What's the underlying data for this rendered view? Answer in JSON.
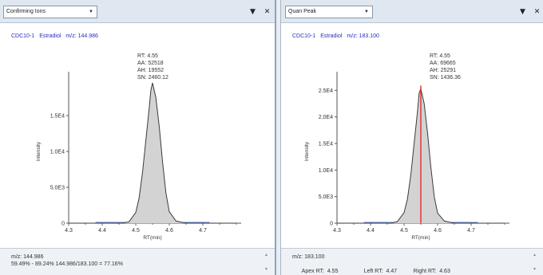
{
  "panels": [
    {
      "dropdown": "Confirming Ions",
      "compound_id": "CDC10-1",
      "compound_name": "Estradiol",
      "mz_label": "m/z: 144.986",
      "annotation": [
        "RT: 4.55",
        "AA: 52518",
        "AH: 19552",
        "SN: 2460.12"
      ],
      "info_line1": "m/z: 144.986",
      "info_line2": "59.49% - 89.24% 144.986/183.100 = 77.16%"
    },
    {
      "dropdown": "Quan Peak",
      "compound_id": "CDC10-1",
      "compound_name": "Estradiol",
      "mz_label": "m/z: 183.100",
      "annotation": [
        "RT: 4.55",
        "AA: 69665",
        "AH: 25291",
        "SN: 1436.36"
      ],
      "info_line1": "m/z: 183.100",
      "info_apex": "Apex RT:  4.55",
      "info_left": "Left RT:  4.47",
      "info_right": "Right RT:  4.63"
    }
  ],
  "toolbar": {
    "filter_icon": "funnel-icon",
    "close_icon": "close-icon"
  },
  "colors": {
    "peak_fill": "#d3d3d3",
    "trace": "#3a3a3a",
    "baseline": "#5f7fd0",
    "apex_marker": "#e32b2b",
    "compound_text": "#2b2fbe"
  },
  "chart_data": [
    {
      "type": "line",
      "xlabel": "RT(min)",
      "ylabel": "Intensity",
      "xlim": [
        4.3,
        4.8
      ],
      "ylim": [
        0,
        20000
      ],
      "x_ticks": [
        "4.3",
        "4.4",
        "4.5",
        "4.6",
        "4.7"
      ],
      "y_ticks": [
        "0",
        "5.0E3",
        "1.0E4",
        "1.5E4"
      ],
      "y_tick_values": [
        0,
        5000,
        10000,
        15000
      ],
      "series": [
        {
          "x": [
            4.3,
            4.4,
            4.46,
            4.48,
            4.5,
            4.51,
            4.52,
            4.53,
            4.54,
            4.545,
            4.55,
            4.56,
            4.57,
            4.58,
            4.59,
            4.6,
            4.62,
            4.65,
            4.7,
            4.8
          ],
          "values": [
            0,
            0,
            0,
            200,
            1500,
            3500,
            7000,
            11500,
            16000,
            18500,
            19552,
            17500,
            13500,
            8500,
            4200,
            1600,
            300,
            0,
            0,
            0
          ]
        }
      ],
      "peak_apex_rt": 4.55,
      "show_apex_marker": false
    },
    {
      "type": "line",
      "xlabel": "RT(min)",
      "ylabel": "Intensity",
      "xlim": [
        4.3,
        4.8
      ],
      "ylim": [
        0,
        27000
      ],
      "x_ticks": [
        "4.3",
        "4.4",
        "4.5",
        "4.6",
        "4.7"
      ],
      "y_ticks": [
        "0",
        "5.0E3",
        "1.0E4",
        "1.5E4",
        "2.0E4",
        "2.5E4"
      ],
      "y_tick_values": [
        0,
        5000,
        10000,
        15000,
        20000,
        25000
      ],
      "series": [
        {
          "x": [
            4.3,
            4.4,
            4.46,
            4.48,
            4.5,
            4.51,
            4.52,
            4.53,
            4.54,
            4.545,
            4.55,
            4.56,
            4.57,
            4.58,
            4.59,
            4.6,
            4.62,
            4.65,
            4.7,
            4.8
          ],
          "values": [
            0,
            0,
            0,
            300,
            2000,
            4500,
            9000,
            15000,
            21000,
            24500,
            25291,
            22500,
            17000,
            10500,
            5000,
            1900,
            400,
            0,
            0,
            0
          ]
        }
      ],
      "peak_apex_rt": 4.55,
      "show_apex_marker": true
    }
  ]
}
